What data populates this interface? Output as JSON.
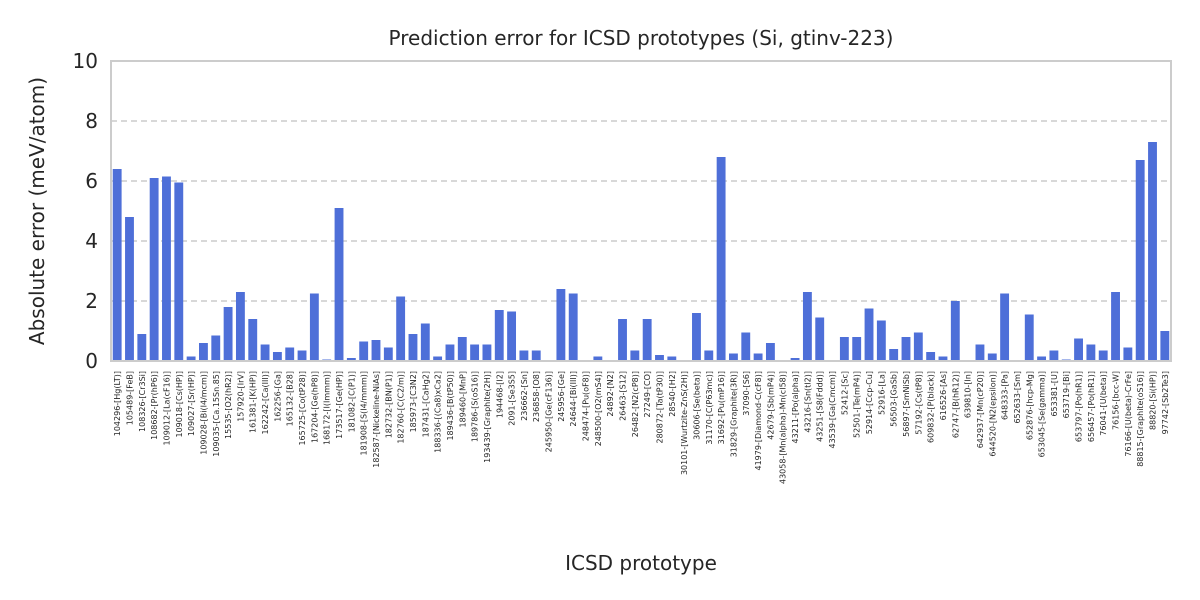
{
  "chart_data": {
    "type": "bar",
    "title": "Prediction error for ICSD prototypes (Si, gtinv-223)",
    "xlabel": "ICSD prototype",
    "ylabel": "Absolute error (meV/atom)",
    "ylim": [
      0,
      10
    ],
    "yticks": [
      0,
      2,
      4,
      6,
      8,
      10
    ],
    "grid": "horizontal dashed",
    "colors": {
      "bar": "#4e6fd8",
      "grid": "#cccccc",
      "frame": "#cccccc",
      "text": "#262626"
    },
    "categories": [
      "104296-[Hg(LT)]",
      "105489-[FeB]",
      "108326-[Cr3Si]",
      "108682-[Pr(hP6)]",
      "109012-[La(cF16)]",
      "109018-[Cs(HP)]",
      "109027-[Sr(HP)]",
      "109028-[Bi(I4/mcm)]",
      "109035-[Ca.15Sn.85]",
      "15535-[O2(hR2)]",
      "157920-[IrV]",
      "161381-[K(HP)]",
      "162242-[Ca(III)]",
      "162256-[Ga]",
      "165132-[B28]",
      "165725-[Co(tP28)]",
      "167204-[Ge(hP8)]",
      "168172-[I(Immm)]",
      "173517-[Ge(HP)]",
      "181082-[C(P1)]",
      "181908-[S(I4/mmm)]",
      "182587-[Nickeline-NiAs]",
      "182732-[BN(P1)]",
      "182760-[C(C2/m)]",
      "185973-[C3N2]",
      "187431-[CaHg2]",
      "188336-[(Ca8)xCa2]",
      "189436-[B(tP50)]",
      "189460-[MnP]",
      "189786-[S(oS16)]",
      "193439-[Graphite(2H)]",
      "194468-[I2]",
      "2091-[Se3S5]",
      "236662-[Sn]",
      "236858-[O8]",
      "245950-[Ge(cF136)]",
      "245956-[Ge]",
      "24644-[Bi(III)]",
      "248474-[Pu(oF8)]",
      "248500-[O2(mS4)]",
      "24892-[N2]",
      "26463-[S12]",
      "26482-[N2(cP8)]",
      "27249-[CO]",
      "280872-[Ta(tP30)]",
      "28540-[H2]",
      "30101-[Wurtzite-ZnS(2H)]",
      "30606-[Se(beta)]",
      "31170-[C(P63mc)]",
      "31692-[Pu(mP16)]",
      "31829-[Graphite(3R)]",
      "37090-[S6]",
      "41979-[Diamond-C(cF8)]",
      "42679-[Sb(mP4)]",
      "43058-[Mn(alpha)-Mn(cI58)]",
      "43211-[Po(alpha)]",
      "43216-[Sn(tI2)]",
      "43251-[S8(Fddd)]",
      "43539-[Ga(Cmcm)]",
      "52412-[Sc]",
      "52501-[Te(mP4)]",
      "52914-[Ccp-Cu]",
      "52916-[La]",
      "56503-[GaSb]",
      "56897-[SmNiSb]",
      "57192-[Cs(tP8)]",
      "609832-[P(black)]",
      "616526-[As]",
      "62747-[B(hR12)]",
      "639810-[In]",
      "642937-[Mn(cP20)]",
      "644520-[N2(epsilon)]",
      "648333-[Pa]",
      "652633-[Sm]",
      "652876-[hcp-Mg]",
      "653045-[Se(gamma)]",
      "653381-[U]",
      "653719-[Bi]",
      "653797-[Po(hR1)]",
      "656457-[Po(hR1)]",
      "76041-[U(beta)]",
      "76156-[bcc-W]",
      "76166-[U(beta)-CrFe]",
      "88815-[Graphite(oS16)]",
      "88820-[Si(HP)]",
      "97742-[Sb2Te3]"
    ],
    "values": [
      6.4,
      4.8,
      0.9,
      6.1,
      6.15,
      5.95,
      0.15,
      0.6,
      0.85,
      1.8,
      2.3,
      1.4,
      0.55,
      0.3,
      0.45,
      0.35,
      2.25,
      0.05,
      5.1,
      0.1,
      0.65,
      0.7,
      0.45,
      2.15,
      0.9,
      1.25,
      0.15,
      0.55,
      0.8,
      0.55,
      0.55,
      1.7,
      1.65,
      0.35,
      0.35,
      0.0,
      2.4,
      2.25,
      0.0,
      0.15,
      0.0,
      1.4,
      0.35,
      1.4,
      0.2,
      0.15,
      0.0,
      1.6,
      0.35,
      6.8,
      0.25,
      0.95,
      0.25,
      0.6,
      0.0,
      0.1,
      2.3,
      1.45,
      0.0,
      0.8,
      0.8,
      1.75,
      1.35,
      0.4,
      0.8,
      0.95,
      0.3,
      0.15,
      2.0,
      0.0,
      0.55,
      0.25,
      2.25,
      0.0,
      1.55,
      0.15,
      0.35,
      0.05,
      0.75,
      0.55,
      0.35,
      2.3,
      0.45,
      6.7,
      7.3,
      1.0
    ]
  }
}
